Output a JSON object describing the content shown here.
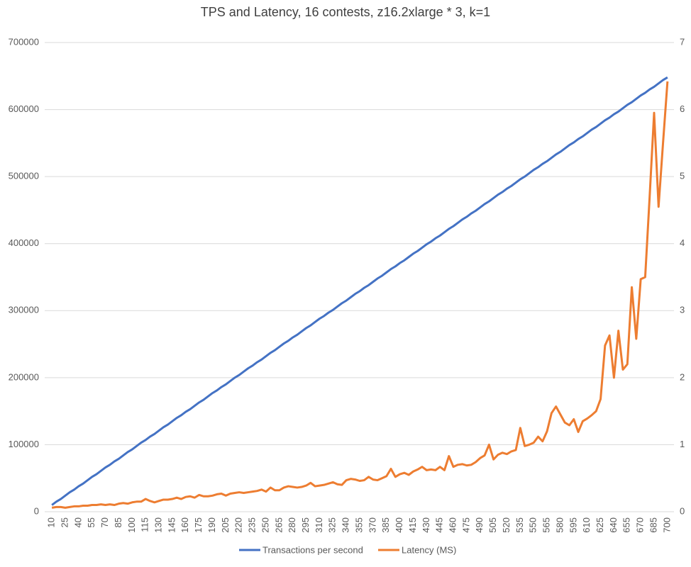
{
  "chart_data": {
    "type": "line",
    "title": "TPS and Latency, 16 contests, z16.2xlarge * 3, k=1",
    "categories": [
      "10",
      null,
      null,
      "25",
      null,
      null,
      "40",
      null,
      null,
      "55",
      null,
      null,
      "70",
      null,
      null,
      "85",
      null,
      null,
      "100",
      null,
      null,
      "115",
      null,
      null,
      "130",
      null,
      null,
      "145",
      null,
      null,
      "160",
      null,
      null,
      "175",
      null,
      null,
      "190",
      null,
      null,
      "205",
      null,
      null,
      "220",
      null,
      null,
      "235",
      null,
      null,
      "250",
      null,
      null,
      "265",
      null,
      null,
      "280",
      null,
      null,
      "295",
      null,
      null,
      "310",
      null,
      null,
      "325",
      null,
      null,
      "340",
      null,
      null,
      "355",
      null,
      null,
      "370",
      null,
      null,
      "385",
      null,
      null,
      "400",
      null,
      null,
      "415",
      null,
      null,
      "430",
      null,
      null,
      "445",
      null,
      null,
      "460",
      null,
      null,
      "475",
      null,
      null,
      "490",
      null,
      null,
      "505",
      null,
      null,
      "520",
      null,
      null,
      "535",
      null,
      null,
      "550",
      null,
      null,
      "565",
      null,
      null,
      "580",
      null,
      null,
      "595",
      null,
      null,
      "610",
      null,
      null,
      "625",
      null,
      null,
      "640",
      null,
      null,
      "655",
      null,
      null,
      "670",
      null,
      null,
      "685",
      null,
      null,
      "700"
    ],
    "series": [
      {
        "name": "Transactions per second",
        "color": "#4472c4",
        "values": [
          10000,
          15000,
          19000,
          24000,
          29000,
          33000,
          38000,
          42000,
          47000,
          52000,
          56000,
          61000,
          66000,
          70000,
          75000,
          79000,
          84000,
          89000,
          93000,
          98000,
          103000,
          107000,
          112000,
          116000,
          121000,
          126000,
          130000,
          135000,
          140000,
          144000,
          149000,
          153000,
          158000,
          163000,
          167000,
          172000,
          177000,
          181000,
          186000,
          190000,
          195000,
          200000,
          204000,
          209000,
          214000,
          218000,
          223000,
          227000,
          232000,
          237000,
          241000,
          246000,
          251000,
          255000,
          260000,
          264000,
          269000,
          274000,
          278000,
          283000,
          288000,
          292000,
          297000,
          301000,
          306000,
          311000,
          315000,
          320000,
          325000,
          329000,
          334000,
          338000,
          343000,
          348000,
          352000,
          357000,
          362000,
          366000,
          371000,
          375000,
          380000,
          385000,
          389000,
          394000,
          399000,
          403000,
          408000,
          412000,
          417000,
          422000,
          426000,
          431000,
          436000,
          440000,
          445000,
          449000,
          454000,
          459000,
          463000,
          468000,
          473000,
          477000,
          482000,
          486000,
          491000,
          496000,
          500000,
          505000,
          510000,
          514000,
          519000,
          523000,
          528000,
          533000,
          537000,
          542000,
          547000,
          551000,
          556000,
          560000,
          565000,
          570000,
          574000,
          579000,
          584000,
          588000,
          593000,
          597000,
          602000,
          607000,
          611000,
          616000,
          621000,
          625000,
          630000,
          634000,
          639000,
          644000,
          648000
        ]
      },
      {
        "name": "Latency (MS)",
        "color": "#ed7d31",
        "axis": "y2",
        "values": [
          0.06,
          0.07,
          0.07,
          0.06,
          0.07,
          0.08,
          0.08,
          0.09,
          0.09,
          0.1,
          0.1,
          0.11,
          0.1,
          0.11,
          0.1,
          0.12,
          0.13,
          0.12,
          0.14,
          0.15,
          0.15,
          0.19,
          0.16,
          0.14,
          0.16,
          0.18,
          0.18,
          0.19,
          0.21,
          0.19,
          0.22,
          0.23,
          0.21,
          0.25,
          0.23,
          0.23,
          0.24,
          0.26,
          0.27,
          0.24,
          0.27,
          0.28,
          0.29,
          0.28,
          0.29,
          0.3,
          0.31,
          0.33,
          0.3,
          0.36,
          0.32,
          0.32,
          0.36,
          0.38,
          0.37,
          0.36,
          0.37,
          0.39,
          0.43,
          0.38,
          0.39,
          0.4,
          0.42,
          0.44,
          0.41,
          0.4,
          0.47,
          0.49,
          0.48,
          0.46,
          0.47,
          0.52,
          0.48,
          0.47,
          0.5,
          0.53,
          0.64,
          0.52,
          0.56,
          0.58,
          0.55,
          0.6,
          0.63,
          0.67,
          0.62,
          0.63,
          0.62,
          0.67,
          0.62,
          0.83,
          0.67,
          0.7,
          0.71,
          0.69,
          0.7,
          0.74,
          0.8,
          0.84,
          1.0,
          0.78,
          0.85,
          0.88,
          0.86,
          0.9,
          0.92,
          1.25,
          0.98,
          1.0,
          1.03,
          1.12,
          1.05,
          1.2,
          1.47,
          1.57,
          1.45,
          1.33,
          1.29,
          1.38,
          1.19,
          1.35,
          1.39,
          1.44,
          1.5,
          1.68,
          2.48,
          2.63,
          2.0,
          2.7,
          2.12,
          2.2,
          3.35,
          2.58,
          3.47,
          3.5,
          4.7,
          5.95,
          4.55,
          5.5,
          6.42
        ]
      }
    ],
    "ylim": [
      0,
      700000
    ],
    "yticks": [
      0,
      100000,
      200000,
      300000,
      400000,
      500000,
      600000,
      700000
    ],
    "y2lim": [
      0,
      7
    ],
    "y2ticks": [
      0,
      1,
      2,
      3,
      4,
      5,
      6,
      7
    ],
    "grid": true,
    "legend": "bottom"
  }
}
